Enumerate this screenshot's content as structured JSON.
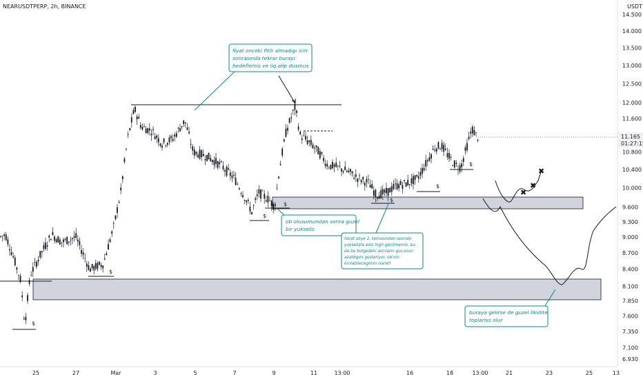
{
  "symbol_label": "NEARUSDTPERP, 2h, BINANCE",
  "currency": "USDT",
  "last_price_label": "11.165",
  "countdown_label": "01:27:15",
  "colors": {
    "candle": "#131722",
    "annotation": "#0a8a8a",
    "zone_fill": "#d1d4dc",
    "background": "#ffffff"
  },
  "chart_data": {
    "type": "candlestick",
    "title": "NEARUSDTPERP, 2h, BINANCE",
    "y_scale": "log",
    "ylim": [
      6.8,
      14.75
    ],
    "y_ticks": [
      "14.500",
      "14.000",
      "13.500",
      "13.000",
      "12.500",
      "12.000",
      "11.600",
      "11.200",
      "10.800",
      "10.400",
      "10.000",
      "9.600",
      "9.300",
      "9.000",
      "8.700",
      "8.400",
      "8.100",
      "7.850",
      "7.600",
      "7.350",
      "7.100",
      "6.930"
    ],
    "x_ticks": [
      "25",
      "27",
      "Mar",
      "3",
      "5",
      "7",
      "9",
      "11",
      "13:00",
      "16",
      "18",
      "13:00",
      "21",
      "23",
      "25",
      "13"
    ],
    "swing_points": [
      {
        "x": "Feb 24",
        "price": 9.05
      },
      {
        "x": "Feb 25",
        "price": 7.4
      },
      {
        "x": "Feb 26",
        "price": 9.0
      },
      {
        "x": "Feb 28",
        "price": 8.35
      },
      {
        "x": "Mar 1",
        "price": 10.8
      },
      {
        "x": "Mar 2",
        "price": 11.85
      },
      {
        "x": "Mar 3",
        "price": 11.2
      },
      {
        "x": "Mar 5",
        "price": 11.75
      },
      {
        "x": "Mar 6",
        "price": 10.5
      },
      {
        "x": "Mar 8",
        "price": 9.35
      },
      {
        "x": "Mar 9",
        "price": 9.55
      },
      {
        "x": "Mar 10",
        "price": 11.9
      },
      {
        "x": "Mar 11",
        "price": 11.1
      },
      {
        "x": "Mar 12",
        "price": 10.6
      },
      {
        "x": "Mar 14",
        "price": 9.75
      },
      {
        "x": "Mar 16",
        "price": 10.1
      },
      {
        "x": "Mar 17",
        "price": 11.05
      },
      {
        "x": "Mar 18",
        "price": 10.4
      },
      {
        "x": "Mar 19",
        "price": 11.165
      }
    ],
    "levels": [
      {
        "price": 11.95,
        "x_from": "Mar 2",
        "x_to": "Mar 12",
        "label": ""
      },
      {
        "price": 8.2,
        "x_from": "Feb 23",
        "x_to": "Feb 26",
        "label": ""
      }
    ],
    "zones": [
      {
        "top": 9.85,
        "bottom": 9.6,
        "label": ""
      },
      {
        "top": 8.2,
        "bottom": 7.9,
        "label": ""
      }
    ],
    "liquidity_marks": [
      "$",
      "$",
      "$",
      "$",
      "$",
      "$",
      "$"
    ],
    "scenario_points": [
      {
        "x": "Mar 20",
        "price": 9.85
      },
      {
        "x": "Mar 21",
        "price": 9.75
      },
      {
        "x": "Mar 22",
        "price": 10.05
      },
      {
        "x": "Mar 22",
        "price": 10.4
      }
    ],
    "scenario_points_2": [
      {
        "x": "Mar 20",
        "price": 9.85
      },
      {
        "x": "Mar 22",
        "price": 9.1
      },
      {
        "x": "Mar 23",
        "price": 8.1
      },
      {
        "x": "Mar 24",
        "price": 8.6
      },
      {
        "x": "Mar 25",
        "price": 9.35
      },
      {
        "x": "Mar 26",
        "price": 9.6
      }
    ]
  },
  "annotations": {
    "top_note": [
      "fiyat onceki fitili almadıgı icin",
      "sonrasında tekrar burayı",
      "hedeflemis ve liq alip dusmus"
    ],
    "ob_note": [
      "ob olusumundan sonra guzel",
      "bir yukselis"
    ],
    "center_note": [
      "fakat obye 2. temasından sonraki",
      "yukselişte eski high gecilmemis. bu",
      "da bu bolgedeki alıcıların gucunun",
      "azaldıgını gosteriyor. ob'nin",
      "kırılabilecegiinin isareti"
    ],
    "bottom_note": [
      "buraya gelirse de guzel likidite",
      "toplamıs olur"
    ]
  }
}
